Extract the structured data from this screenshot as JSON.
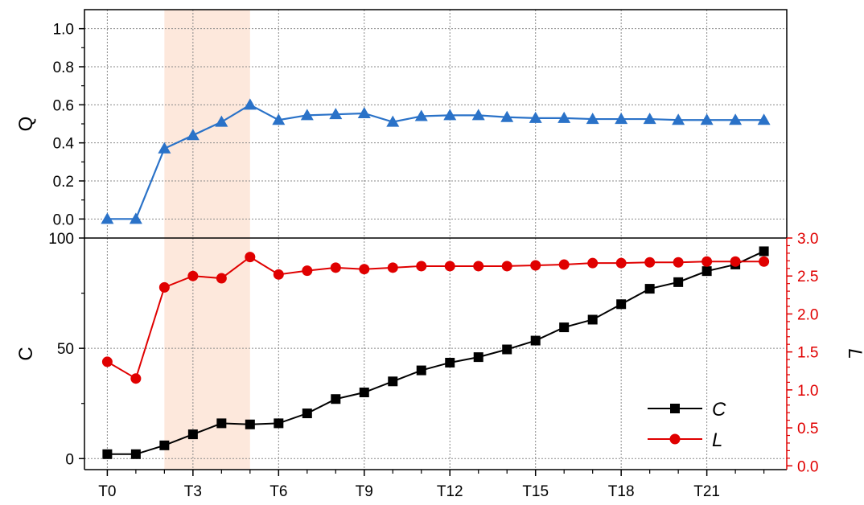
{
  "chart_data": [
    {
      "type": "line",
      "panel": "top",
      "ylabel": "Q",
      "ylim": [
        -0.1,
        1.1
      ],
      "yticks": [
        0.0,
        0.2,
        0.4,
        0.6,
        0.8,
        1.0
      ],
      "ytick_labels": [
        "0.0",
        "0.2",
        "0.4",
        "0.6",
        "0.8",
        "1.0"
      ],
      "grid": true,
      "x": [
        0,
        1,
        2,
        3,
        4,
        5,
        6,
        7,
        8,
        9,
        10,
        11,
        12,
        13,
        14,
        15,
        16,
        17,
        18,
        19,
        20,
        21,
        22,
        23
      ],
      "series": [
        {
          "marker": "triangle",
          "color": "#2a72c8",
          "values": [
            0.0,
            0.0,
            0.37,
            0.44,
            0.51,
            0.6,
            0.52,
            0.545,
            0.55,
            0.555,
            0.51,
            0.54,
            0.545,
            0.545,
            0.535,
            0.53,
            0.53,
            0.525,
            0.525,
            0.525,
            0.52,
            0.52,
            0.52,
            0.52
          ]
        }
      ]
    },
    {
      "type": "line",
      "panel": "bottom",
      "ylabel": "C",
      "ylim": [
        -5,
        100
      ],
      "yticks": [
        0,
        50,
        100
      ],
      "ytick_labels": [
        "0",
        "50",
        "100"
      ],
      "y2label": "L",
      "y2lim": [
        -0.05,
        3.0
      ],
      "y2ticks": [
        0.0,
        0.5,
        1.0,
        1.5,
        2.0,
        2.5,
        3.0
      ],
      "y2tick_labels": [
        "0.0",
        "0.5",
        "1.0",
        "1.5",
        "2.0",
        "2.5",
        "3.0"
      ],
      "grid": true,
      "xlim": [
        -0.8,
        23.8
      ],
      "xticks": [
        0,
        3,
        6,
        9,
        12,
        15,
        18,
        21
      ],
      "xtick_labels": [
        "T0",
        "T3",
        "T6",
        "T9",
        "T12",
        "T15",
        "T18",
        "T21"
      ],
      "x": [
        0,
        1,
        2,
        3,
        4,
        5,
        6,
        7,
        8,
        9,
        10,
        11,
        12,
        13,
        14,
        15,
        16,
        17,
        18,
        19,
        20,
        21,
        22,
        23
      ],
      "legend": {
        "position": "bottom-right",
        "entries": [
          "C",
          "L"
        ]
      },
      "series": [
        {
          "name": "C",
          "axis": "left",
          "marker": "square",
          "color": "#000000",
          "values": [
            2,
            2,
            6,
            11,
            16,
            15.5,
            16,
            20.5,
            27,
            30,
            35,
            40,
            43.5,
            46,
            49.5,
            53.5,
            59.5,
            63,
            70,
            77,
            80,
            85,
            88,
            94
          ]
        },
        {
          "name": "L",
          "axis": "right",
          "marker": "circle",
          "color": "#e00000",
          "values": [
            1.37,
            1.15,
            2.35,
            2.5,
            2.47,
            2.75,
            2.52,
            2.57,
            2.61,
            2.59,
            2.61,
            2.63,
            2.63,
            2.63,
            2.63,
            2.64,
            2.65,
            2.67,
            2.67,
            2.68,
            2.68,
            2.69,
            2.69,
            2.69
          ]
        }
      ]
    }
  ],
  "highlight": {
    "x_start": 2,
    "x_end": 5,
    "color": "#fde8dc"
  }
}
